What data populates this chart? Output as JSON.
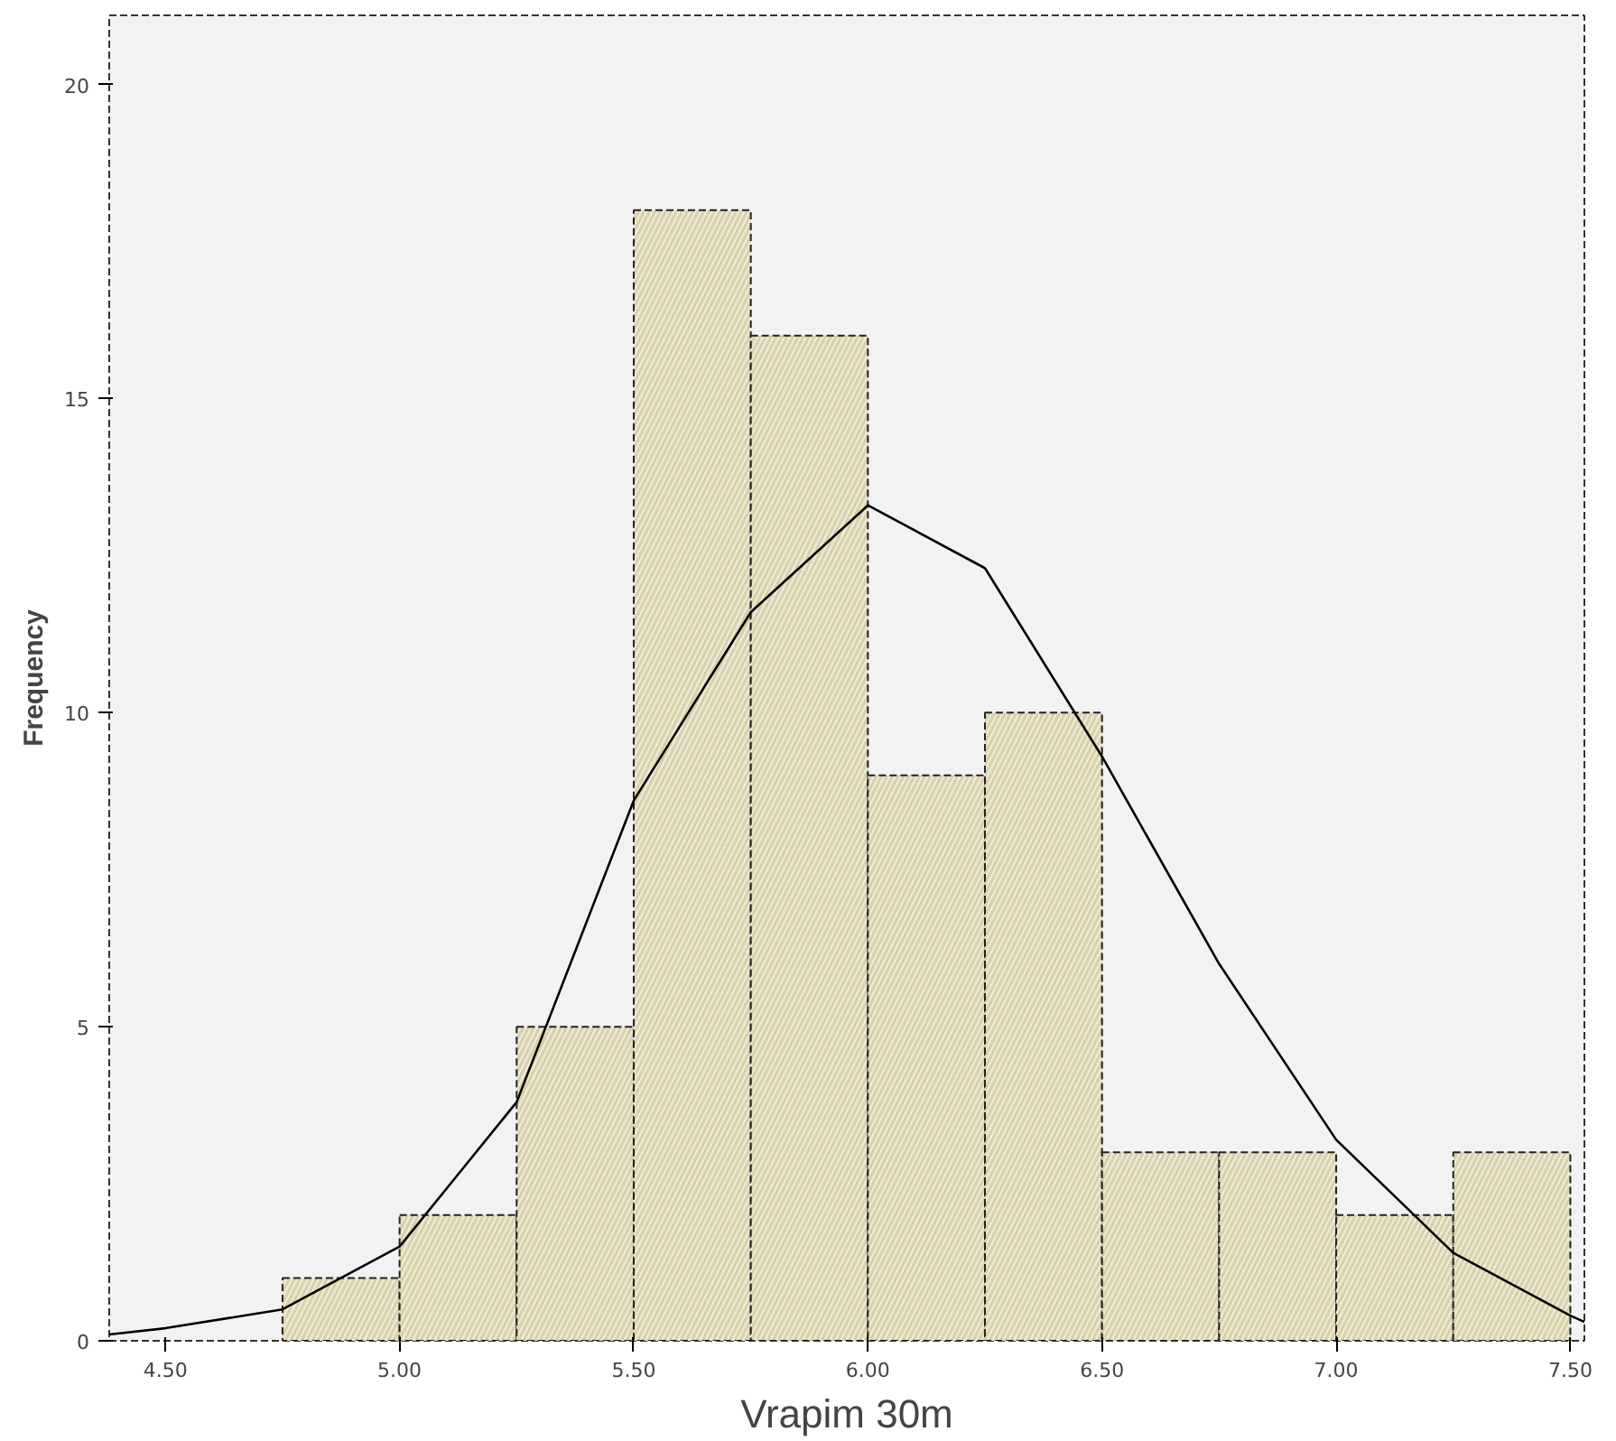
{
  "chart_data": {
    "type": "histogram",
    "xlabel": "Vrapim 30m",
    "ylabel": "Frequency",
    "xlim": [
      4.38,
      7.53
    ],
    "ylim": [
      0,
      21.1
    ],
    "xticks": [
      {
        "value": 4.5,
        "label": "4.50"
      },
      {
        "value": 5.0,
        "label": "5.00"
      },
      {
        "value": 5.5,
        "label": "5.50"
      },
      {
        "value": 6.0,
        "label": "6.00"
      },
      {
        "value": 6.5,
        "label": "6.50"
      },
      {
        "value": 7.0,
        "label": "7.00"
      },
      {
        "value": 7.5,
        "label": "7.50"
      }
    ],
    "yticks": [
      0,
      5,
      10,
      15,
      20
    ],
    "grid": false,
    "series": [
      {
        "color": "#d9d1a9",
        "bins": [
          4.75,
          5.0,
          5.25,
          5.5,
          5.75,
          6.0,
          6.25,
          6.5,
          6.75,
          7.0,
          7.25,
          7.5
        ],
        "values": [
          1,
          2,
          5,
          18,
          16,
          9,
          10,
          3,
          3,
          2,
          3
        ]
      },
      {
        "type": "line",
        "color": "#000000",
        "x": [
          4.38,
          4.5,
          4.75,
          5.0,
          5.25,
          5.5,
          5.75,
          6.0,
          6.25,
          6.5,
          6.75,
          7.0,
          7.25,
          7.5,
          7.53
        ],
        "values": [
          0.1,
          0.2,
          0.5,
          1.5,
          3.8,
          8.6,
          11.6,
          13.3,
          12.3,
          9.3,
          6.0,
          3.2,
          1.4,
          0.4,
          0.3
        ]
      }
    ]
  }
}
